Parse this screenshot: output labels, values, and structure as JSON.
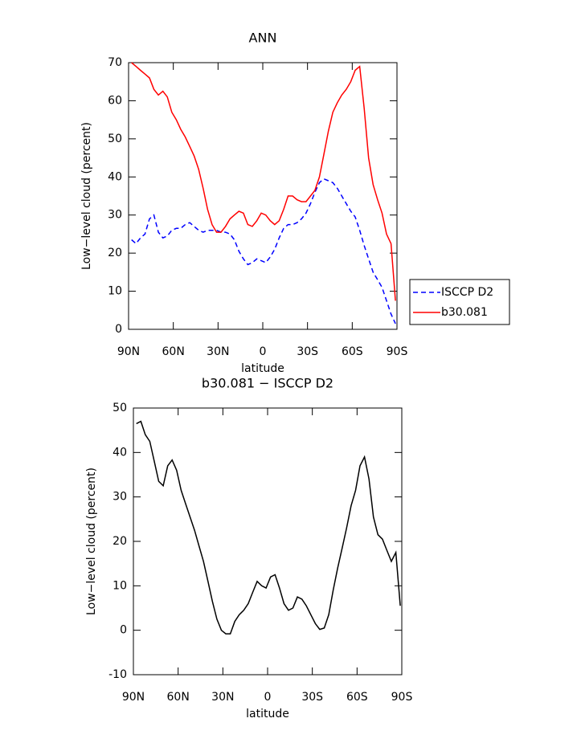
{
  "chart_data": [
    {
      "type": "line",
      "title": "ANN",
      "xlabel": "latitude",
      "ylabel": "Low−level cloud (percent)",
      "x": [
        88,
        85,
        82,
        79,
        76,
        73,
        70,
        67,
        64,
        61,
        58,
        55,
        52,
        49,
        46,
        43,
        40,
        37,
        34,
        31,
        28,
        25,
        22,
        19,
        16,
        13,
        10,
        7,
        4,
        1,
        -2,
        -5,
        -8,
        -11,
        -14,
        -17,
        -20,
        -23,
        -26,
        -29,
        -32,
        -35,
        -38,
        -41,
        -44,
        -47,
        -50,
        -53,
        -56,
        -59,
        -62,
        -65,
        -68,
        -71,
        -74,
        -77,
        -80,
        -83,
        -86,
        -89
      ],
      "series": [
        {
          "name": "ISCCP D2",
          "color": "#0000ff",
          "dashed": true,
          "values": [
            23.5,
            22.5,
            24,
            25,
            29,
            30,
            25.5,
            24,
            24.5,
            26,
            26.5,
            26.5,
            27.5,
            28,
            27,
            26,
            25.5,
            26,
            26,
            26,
            25.5,
            25.5,
            25,
            23.5,
            20.5,
            18.5,
            17,
            17.5,
            18.5,
            18,
            17.5,
            19,
            21,
            24,
            26.5,
            27.5,
            27.5,
            28,
            29,
            30.5,
            33,
            36,
            38.5,
            39.5,
            39,
            38.5,
            37,
            35,
            33,
            31,
            29.5,
            26,
            22,
            18.5,
            15,
            13,
            11,
            7.5,
            4,
            1.5
          ]
        },
        {
          "name": "b30.081",
          "color": "#ff0000",
          "dashed": false,
          "values": [
            70,
            69,
            68,
            67,
            66,
            63,
            61.5,
            62.5,
            61,
            57,
            55,
            52.5,
            50.5,
            48,
            45.5,
            42,
            37,
            31.5,
            27.5,
            25.5,
            25.5,
            27,
            29,
            30,
            31,
            30.5,
            27.5,
            27,
            28.5,
            30.5,
            30,
            28.5,
            27.5,
            28.5,
            31.5,
            35,
            35,
            34,
            33.5,
            33.5,
            35,
            36.5,
            40,
            46,
            52,
            57,
            59.5,
            61.5,
            63,
            65,
            68,
            69,
            58,
            45,
            38,
            34,
            30.5,
            25,
            22.5,
            7.5
          ]
        }
      ],
      "xlim": [
        90,
        -90
      ],
      "xticks": [
        {
          "value": 90,
          "label": "90N"
        },
        {
          "value": 60,
          "label": "60N"
        },
        {
          "value": 30,
          "label": "30N"
        },
        0,
        {
          "value": -30,
          "label": "30S"
        },
        {
          "value": -60,
          "label": "60S"
        },
        {
          "value": -90,
          "label": "90S"
        }
      ],
      "ylim": [
        0,
        70
      ],
      "yticks": [
        0,
        10,
        20,
        30,
        40,
        50,
        60,
        70
      ],
      "legend": "outside-right",
      "grid": false
    },
    {
      "type": "line",
      "title": "b30.081 − ISCCP D2",
      "xlabel": "latitude",
      "ylabel": "Low−level cloud (percent)",
      "x": [
        88,
        85,
        82,
        79,
        76,
        73,
        70,
        67,
        64,
        61,
        58,
        55,
        52,
        49,
        46,
        43,
        40,
        37,
        34,
        31,
        28,
        25,
        22,
        19,
        16,
        13,
        10,
        7,
        4,
        1,
        -2,
        -5,
        -8,
        -11,
        -14,
        -17,
        -20,
        -23,
        -26,
        -29,
        -32,
        -35,
        -38,
        -41,
        -44,
        -47,
        -50,
        -53,
        -56,
        -59,
        -62,
        -65,
        -68,
        -71,
        -74,
        -77,
        -80,
        -83,
        -86,
        -89
      ],
      "values": [
        46.5,
        47,
        44,
        42.5,
        38,
        33.5,
        32.5,
        37,
        38.3,
        36,
        31.5,
        28.5,
        25.5,
        22.5,
        19,
        15.5,
        11,
        6.5,
        2.5,
        0,
        -0.8,
        -0.8,
        2,
        3.5,
        4.5,
        6,
        8.5,
        11,
        10,
        9.5,
        12,
        12.5,
        9.5,
        6,
        4.5,
        5,
        7.5,
        7,
        5.5,
        3.5,
        1.5,
        0.2,
        0.5,
        3.5,
        9,
        14,
        18.5,
        23,
        28,
        31.5,
        37,
        39,
        34,
        25.5,
        21.5,
        20.5,
        18,
        15.5,
        17.5,
        5.5
      ],
      "color": "#000000",
      "xlim": [
        90,
        -90
      ],
      "xticks": [
        {
          "value": 90,
          "label": "90N"
        },
        {
          "value": 60,
          "label": "60N"
        },
        {
          "value": 30,
          "label": "30N"
        },
        0,
        {
          "value": -30,
          "label": "30S"
        },
        {
          "value": -60,
          "label": "60S"
        },
        {
          "value": -90,
          "label": "90S"
        }
      ],
      "ylim": [
        -10,
        50
      ],
      "yticks": [
        -10,
        0,
        10,
        20,
        30,
        40,
        50
      ],
      "grid": false
    }
  ]
}
